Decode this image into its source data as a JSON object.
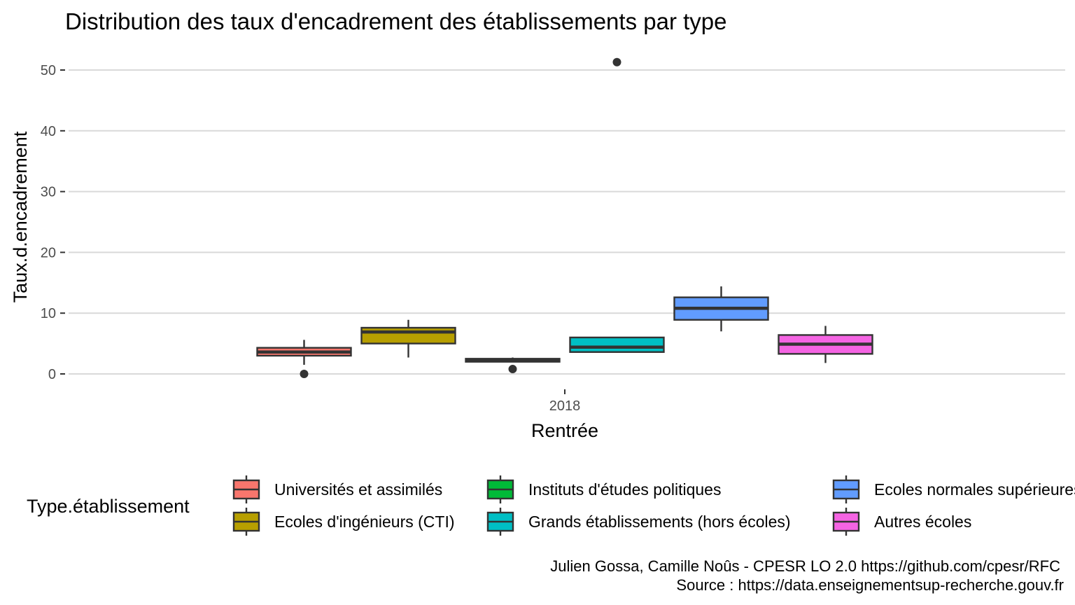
{
  "chart_data": {
    "type": "boxplot",
    "title": "Distribution des taux d'encadrement des établissements par type",
    "xlabel": "Rentrée",
    "ylabel": "Taux.d.encadrement",
    "categories": [
      "2018"
    ],
    "ylim": [
      -1,
      52
    ],
    "yticks": [
      0,
      10,
      20,
      30,
      40,
      50
    ],
    "grid": true,
    "legend": {
      "title": "Type.établissement",
      "placement": "bottom"
    },
    "series": [
      {
        "name": "Universités et assimilés",
        "color": "#F8766D",
        "min": 1.5,
        "q1": 3.0,
        "median": 3.6,
        "q3": 4.3,
        "max": 5.6,
        "outliers": [
          0.0
        ]
      },
      {
        "name": "Ecoles d'ingénieurs (CTI)",
        "color": "#B79F00",
        "min": 2.7,
        "q1": 5.0,
        "median": 6.9,
        "q3": 7.6,
        "max": 8.9,
        "outliers": []
      },
      {
        "name": "Instituts d'études politiques",
        "color": "#00BA38",
        "min": 2.0,
        "q1": 2.0,
        "median": 2.3,
        "q3": 2.5,
        "max": 2.7,
        "outliers": [
          0.8
        ]
      },
      {
        "name": "Grands établissements (hors écoles)",
        "color": "#00BFC4",
        "min": 3.5,
        "q1": 3.6,
        "median": 4.4,
        "q3": 6.0,
        "max": 6.0,
        "outliers": [
          51.3
        ]
      },
      {
        "name": "Ecoles normales supérieures",
        "color": "#619CFF",
        "min": 7.0,
        "q1": 8.9,
        "median": 10.8,
        "q3": 12.6,
        "max": 14.4,
        "outliers": []
      },
      {
        "name": "Autres écoles",
        "color": "#F564E3",
        "min": 1.8,
        "q1": 3.3,
        "median": 4.9,
        "q3": 6.4,
        "max": 7.9,
        "outliers": []
      }
    ],
    "caption_lines": [
      "Julien Gossa, Camille Noûs - CPESR LO 2.0 https://github.com/cpesr/RFC",
      "Source : https://data.enseignementsup-recherche.gouv.fr"
    ]
  }
}
